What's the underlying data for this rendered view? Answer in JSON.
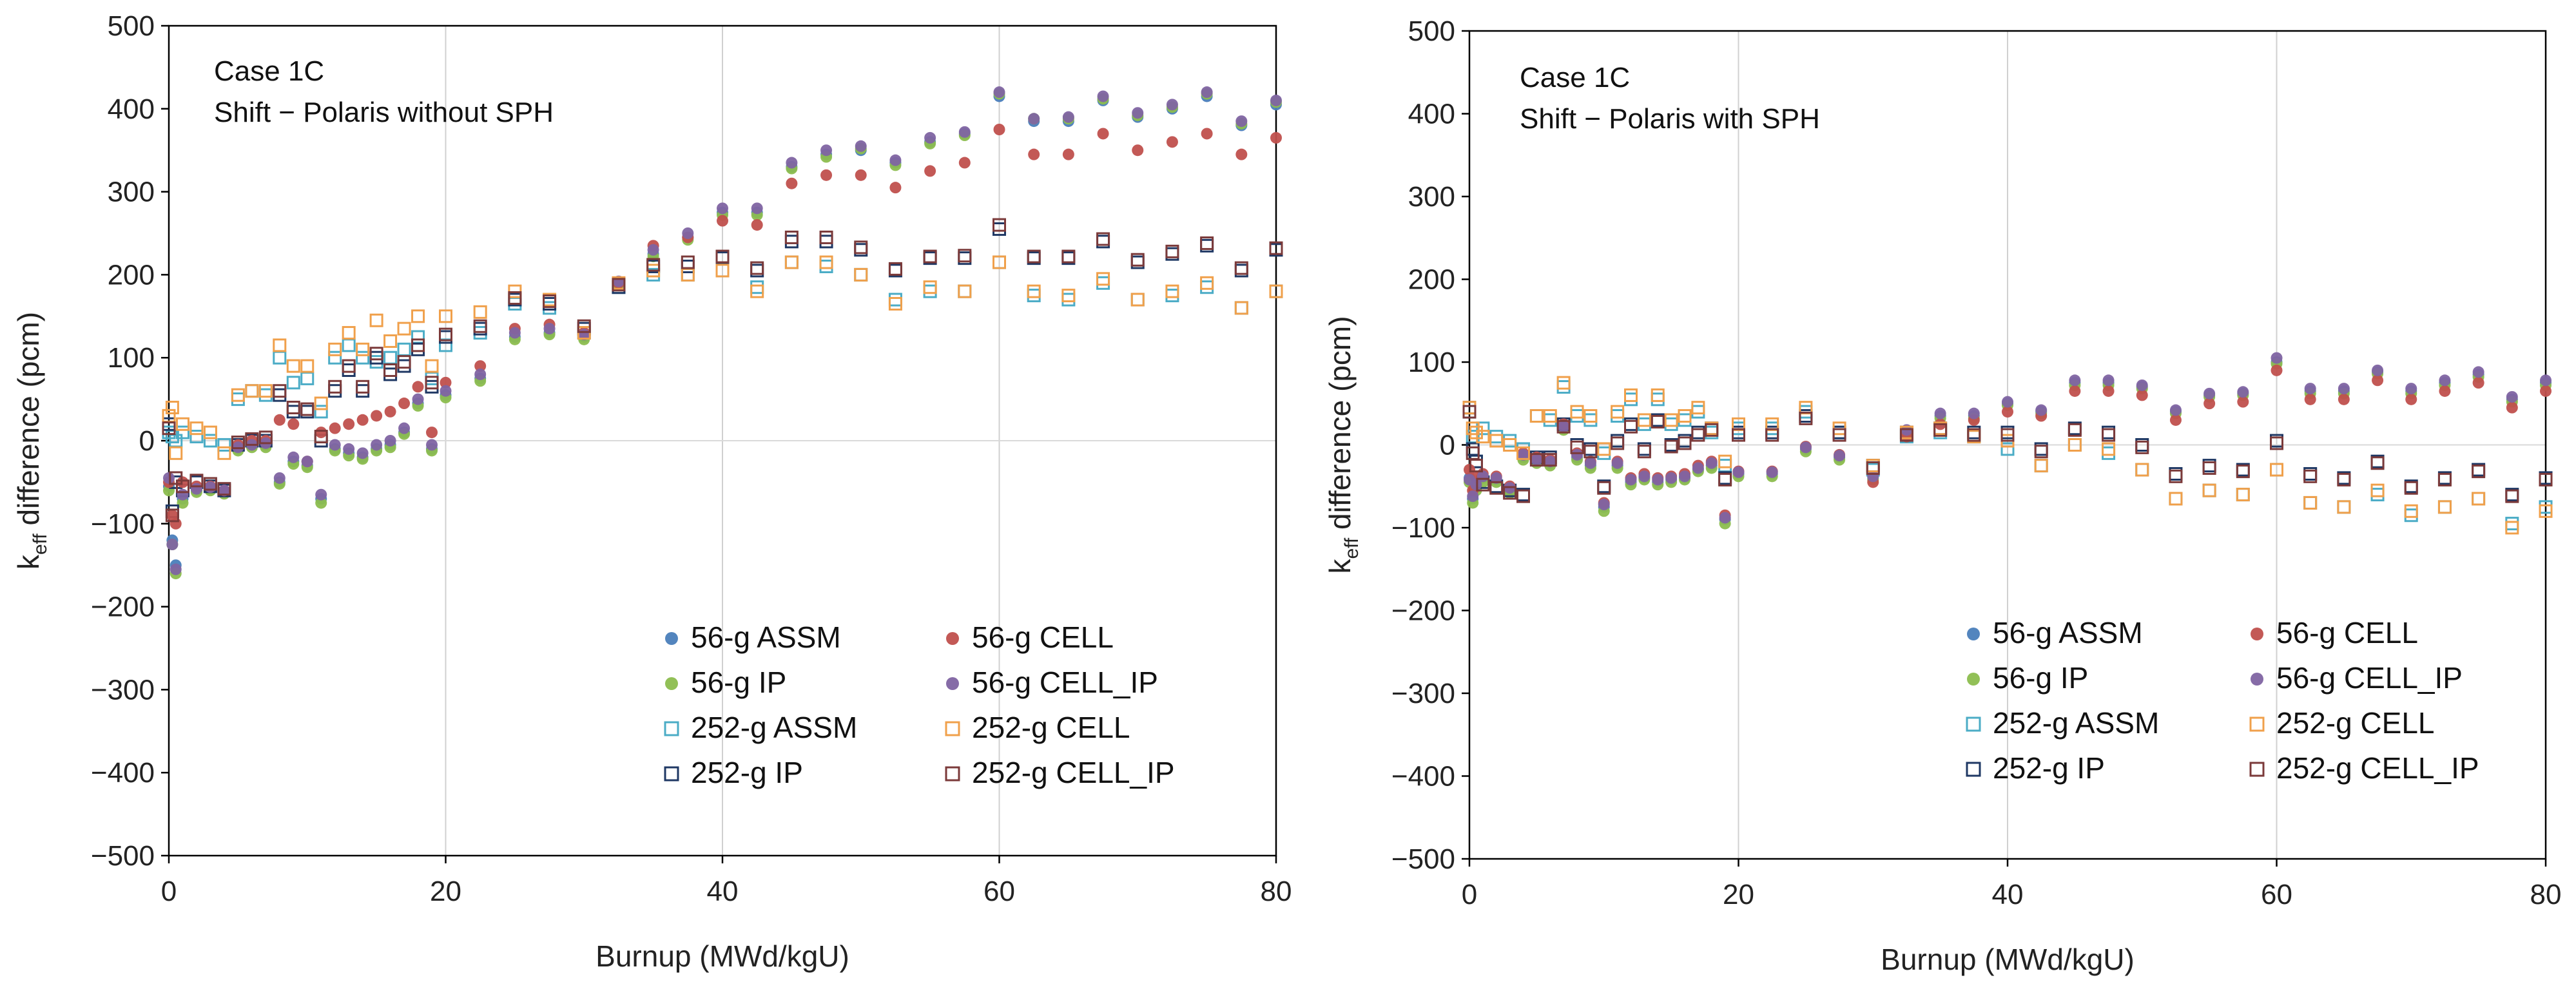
{
  "chart_data": [
    {
      "type": "scatter",
      "annotation": [
        "Case 1C",
        "Shift − Polaris without SPH"
      ],
      "xlabel": "Burnup (MWd/kgU)",
      "ylabel_main": "k",
      "ylabel_sub": "eff",
      "ylabel_rest": " difference (pcm)",
      "xlim": [
        0,
        80
      ],
      "ylim": [
        -500,
        500
      ],
      "xticks": [
        "0",
        "20",
        "40",
        "60",
        "80"
      ],
      "yticks": [
        "−500",
        "−400",
        "−300",
        "−200",
        "−100",
        "0",
        "100",
        "200",
        "300",
        "400",
        "500"
      ],
      "x": [
        0,
        0.25,
        0.5,
        1,
        2,
        3,
        4,
        5,
        6,
        7,
        8,
        9,
        10,
        11,
        12,
        13,
        14,
        15,
        16,
        17,
        18,
        19,
        20,
        22.5,
        25,
        27.5,
        30,
        32.5,
        35,
        37.5,
        40,
        42.5,
        45,
        47.5,
        50,
        52.5,
        55,
        57.5,
        60,
        62.5,
        65,
        67.5,
        70,
        72.5,
        75,
        77.5,
        80
      ],
      "series": [
        {
          "name": "56-g ASSM",
          "marker": "circle",
          "color": "#4a7ebb",
          "values": [
            -55,
            -120,
            -150,
            -70,
            -60,
            -58,
            -62,
            -10,
            -5,
            -5,
            -50,
            -25,
            -30,
            -70,
            -10,
            -15,
            -20,
            -10,
            -5,
            10,
            45,
            -10,
            55,
            75,
            125,
            130,
            125,
            190,
            225,
            245,
            275,
            275,
            330,
            345,
            350,
            335,
            360,
            370,
            415,
            385,
            385,
            410,
            390,
            400,
            415,
            380,
            405
          ]
        },
        {
          "name": "56-g IP",
          "marker": "circle",
          "color": "#8cbd4e",
          "values": [
            -60,
            -125,
            -160,
            -75,
            -62,
            -60,
            -64,
            -12,
            -8,
            -8,
            -52,
            -28,
            -32,
            -75,
            -12,
            -18,
            -22,
            -12,
            -8,
            8,
            42,
            -12,
            52,
            72,
            122,
            128,
            122,
            188,
            222,
            242,
            272,
            272,
            328,
            342,
            352,
            332,
            358,
            368,
            418,
            388,
            388,
            412,
            392,
            402,
            418,
            382,
            408
          ]
        },
        {
          "name": "252-g ASSM",
          "marker": "square",
          "color": "#4bacc6",
          "values": [
            10,
            5,
            0,
            10,
            5,
            0,
            -5,
            50,
            60,
            55,
            100,
            70,
            75,
            35,
            100,
            115,
            100,
            95,
            100,
            110,
            125,
            75,
            115,
            130,
            165,
            160,
            130,
            185,
            200,
            200,
            205,
            185,
            215,
            210,
            200,
            170,
            180,
            180,
            215,
            175,
            170,
            190,
            170,
            175,
            185,
            160,
            180
          ]
        },
        {
          "name": "252-g IP",
          "marker": "square",
          "color": "#1f3864",
          "values": [
            20,
            -85,
            -50,
            -60,
            -50,
            -55,
            -60,
            -5,
            0,
            0,
            55,
            35,
            35,
            0,
            60,
            85,
            60,
            100,
            80,
            90,
            110,
            65,
            125,
            135,
            170,
            165,
            135,
            185,
            210,
            210,
            220,
            205,
            240,
            240,
            230,
            205,
            220,
            220,
            255,
            220,
            220,
            240,
            215,
            225,
            235,
            205,
            230
          ]
        },
        {
          "name": "56-g CELL",
          "marker": "circle",
          "color": "#c0504d",
          "values": [
            -50,
            -90,
            -100,
            -50,
            -55,
            -55,
            -60,
            -5,
            0,
            0,
            25,
            20,
            -25,
            10,
            15,
            20,
            25,
            30,
            35,
            45,
            65,
            10,
            70,
            90,
            135,
            140,
            130,
            190,
            235,
            245,
            265,
            260,
            310,
            320,
            320,
            305,
            325,
            335,
            375,
            345,
            345,
            370,
            350,
            360,
            370,
            345,
            365
          ]
        },
        {
          "name": "56-g CELL_IP",
          "marker": "circle",
          "color": "#8064a2",
          "values": [
            -45,
            -125,
            -155,
            -65,
            -58,
            -56,
            -60,
            -8,
            -5,
            -3,
            -45,
            -20,
            -25,
            -65,
            -5,
            -10,
            -15,
            -5,
            0,
            15,
            50,
            -5,
            60,
            80,
            130,
            135,
            128,
            192,
            230,
            250,
            280,
            280,
            335,
            350,
            355,
            338,
            365,
            372,
            420,
            388,
            390,
            415,
            395,
            405,
            420,
            385,
            410
          ]
        },
        {
          "name": "252-g CELL",
          "marker": "square",
          "color": "#f0a04b",
          "values": [
            30,
            40,
            -15,
            20,
            15,
            10,
            -15,
            55,
            60,
            60,
            115,
            90,
            90,
            45,
            110,
            130,
            110,
            145,
            120,
            135,
            150,
            90,
            150,
            155,
            180,
            170,
            130,
            190,
            205,
            200,
            205,
            180,
            215,
            215,
            200,
            165,
            185,
            180,
            215,
            180,
            175,
            195,
            170,
            180,
            190,
            160,
            180
          ]
        },
        {
          "name": "252-g CELL_IP",
          "marker": "square",
          "color": "#7b3a3a",
          "values": [
            15,
            -90,
            -45,
            -55,
            -48,
            -52,
            -58,
            -2,
            2,
            4,
            60,
            40,
            38,
            5,
            65,
            90,
            65,
            105,
            85,
            95,
            115,
            70,
            128,
            138,
            172,
            168,
            138,
            188,
            212,
            215,
            222,
            208,
            245,
            245,
            233,
            207,
            222,
            223,
            260,
            222,
            222,
            243,
            218,
            228,
            238,
            208,
            232
          ]
        }
      ],
      "legend_order": [
        "56-g ASSM",
        "56-g CELL",
        "56-g IP",
        "56-g CELL_IP",
        "252-g ASSM",
        "252-g CELL",
        "252-g IP",
        "252-g CELL_IP"
      ],
      "legend": "bottom-right",
      "grid": "vertical"
    },
    {
      "type": "scatter",
      "annotation": [
        "Case 1C",
        "Shift − Polaris with SPH"
      ],
      "xlabel": "Burnup (MWd/kgU)",
      "ylabel_main": "k",
      "ylabel_sub": "eff",
      "ylabel_rest": " difference (pcm)",
      "xlim": [
        0,
        80
      ],
      "ylim": [
        -500,
        500
      ],
      "xticks": [
        "0",
        "20",
        "40",
        "60",
        "80"
      ],
      "yticks": [
        "−500",
        "−400",
        "−300",
        "−200",
        "−100",
        "0",
        "100",
        "200",
        "300",
        "400",
        "500"
      ],
      "x": [
        0,
        0.25,
        0.5,
        1,
        2,
        3,
        4,
        5,
        6,
        7,
        8,
        9,
        10,
        11,
        12,
        13,
        14,
        15,
        16,
        17,
        18,
        19,
        20,
        22.5,
        25,
        27.5,
        30,
        32.5,
        35,
        37.5,
        40,
        42.5,
        45,
        47.5,
        50,
        52.5,
        55,
        57.5,
        60,
        62.5,
        65,
        67.5,
        70,
        72.5,
        75,
        77.5,
        80
      ],
      "series": [
        {
          "name": "56-g ASSM",
          "marker": "circle",
          "color": "#4a7ebb",
          "values": [
            -40,
            -65,
            -50,
            -40,
            -42,
            -55,
            -15,
            -20,
            -22,
            20,
            -15,
            -25,
            -75,
            -25,
            -45,
            -40,
            -45,
            -42,
            -40,
            -30,
            -25,
            -90,
            -35,
            -35,
            -5,
            -15,
            -40,
            15,
            35,
            35,
            50,
            40,
            75,
            75,
            70,
            40,
            60,
            62,
            100,
            65,
            65,
            88,
            65,
            75,
            85,
            55,
            75
          ]
        },
        {
          "name": "56-g IP",
          "marker": "circle",
          "color": "#8cbd4e",
          "values": [
            -45,
            -70,
            -55,
            -45,
            -45,
            -58,
            -18,
            -22,
            -25,
            18,
            -18,
            -28,
            -80,
            -28,
            -48,
            -42,
            -48,
            -45,
            -42,
            -32,
            -28,
            -95,
            -38,
            -38,
            -8,
            -18,
            -42,
            12,
            32,
            32,
            48,
            38,
            72,
            72,
            68,
            38,
            58,
            60,
            98,
            62,
            62,
            86,
            62,
            72,
            82,
            52,
            72
          ]
        },
        {
          "name": "252-g ASSM",
          "marker": "square",
          "color": "#4bacc6",
          "values": [
            40,
            10,
            -20,
            20,
            10,
            5,
            -5,
            35,
            30,
            70,
            35,
            30,
            -10,
            35,
            55,
            25,
            55,
            25,
            30,
            40,
            15,
            -25,
            20,
            20,
            40,
            15,
            -30,
            10,
            15,
            10,
            -5,
            -25,
            0,
            -10,
            -30,
            -65,
            -55,
            -60,
            -30,
            -70,
            -75,
            -60,
            -85,
            -75,
            -65,
            -95,
            -75
          ]
        },
        {
          "name": "252-g IP",
          "marker": "square",
          "color": "#1f3864",
          "values": [
            45,
            -5,
            -20,
            -45,
            -50,
            -55,
            -60,
            -15,
            -15,
            25,
            0,
            -5,
            -50,
            5,
            25,
            -5,
            30,
            0,
            5,
            15,
            20,
            -40,
            15,
            15,
            35,
            15,
            -25,
            15,
            20,
            15,
            15,
            -5,
            20,
            15,
            0,
            -35,
            -25,
            -30,
            5,
            -35,
            -40,
            -20,
            -50,
            -40,
            -30,
            -60,
            -40
          ]
        },
        {
          "name": "56-g CELL",
          "marker": "circle",
          "color": "#c0504d",
          "values": [
            -30,
            -55,
            -40,
            -35,
            -38,
            -50,
            -10,
            -15,
            -18,
            25,
            -10,
            -20,
            -70,
            -20,
            -40,
            -35,
            -40,
            -38,
            -35,
            -25,
            -20,
            -85,
            -32,
            -32,
            -2,
            -12,
            -45,
            10,
            25,
            30,
            40,
            35,
            65,
            65,
            60,
            30,
            50,
            52,
            90,
            55,
            55,
            78,
            55,
            65,
            75,
            45,
            65
          ]
        },
        {
          "name": "56-g CELL_IP",
          "marker": "circle",
          "color": "#8064a2",
          "values": [
            -42,
            -62,
            -48,
            -38,
            -40,
            -52,
            -12,
            -18,
            -20,
            22,
            -12,
            -22,
            -72,
            -22,
            -42,
            -38,
            -42,
            -40,
            -38,
            -28,
            -22,
            -88,
            -33,
            -33,
            -3,
            -13,
            -38,
            18,
            38,
            38,
            52,
            42,
            78,
            78,
            72,
            42,
            62,
            64,
            105,
            68,
            68,
            90,
            68,
            78,
            88,
            58,
            78
          ]
        },
        {
          "name": "252-g CELL",
          "marker": "square",
          "color": "#f0a04b",
          "values": [
            45,
            20,
            15,
            10,
            5,
            0,
            -10,
            35,
            35,
            75,
            40,
            35,
            -5,
            40,
            60,
            30,
            60,
            30,
            35,
            45,
            20,
            -20,
            25,
            25,
            45,
            20,
            -25,
            15,
            20,
            10,
            5,
            -25,
            0,
            -5,
            -30,
            -65,
            -55,
            -60,
            -30,
            -70,
            -75,
            -55,
            -80,
            -75,
            -65,
            -100,
            -80
          ]
        },
        {
          "name": "252-g CELL_IP",
          "marker": "square",
          "color": "#7b3a3a",
          "values": [
            40,
            -10,
            -25,
            -48,
            -52,
            -58,
            -62,
            -18,
            -18,
            22,
            -3,
            -8,
            -52,
            2,
            22,
            -8,
            28,
            -2,
            2,
            12,
            18,
            -42,
            12,
            12,
            32,
            12,
            -28,
            12,
            18,
            12,
            12,
            -8,
            18,
            12,
            -3,
            -38,
            -28,
            -32,
            2,
            -38,
            -42,
            -22,
            -52,
            -42,
            -32,
            -62,
            -42
          ]
        }
      ],
      "legend_order": [
        "56-g ASSM",
        "56-g CELL",
        "56-g IP",
        "56-g CELL_IP",
        "252-g ASSM",
        "252-g CELL",
        "252-g IP",
        "252-g CELL_IP"
      ],
      "legend": "bottom-right",
      "grid": "vertical"
    }
  ]
}
